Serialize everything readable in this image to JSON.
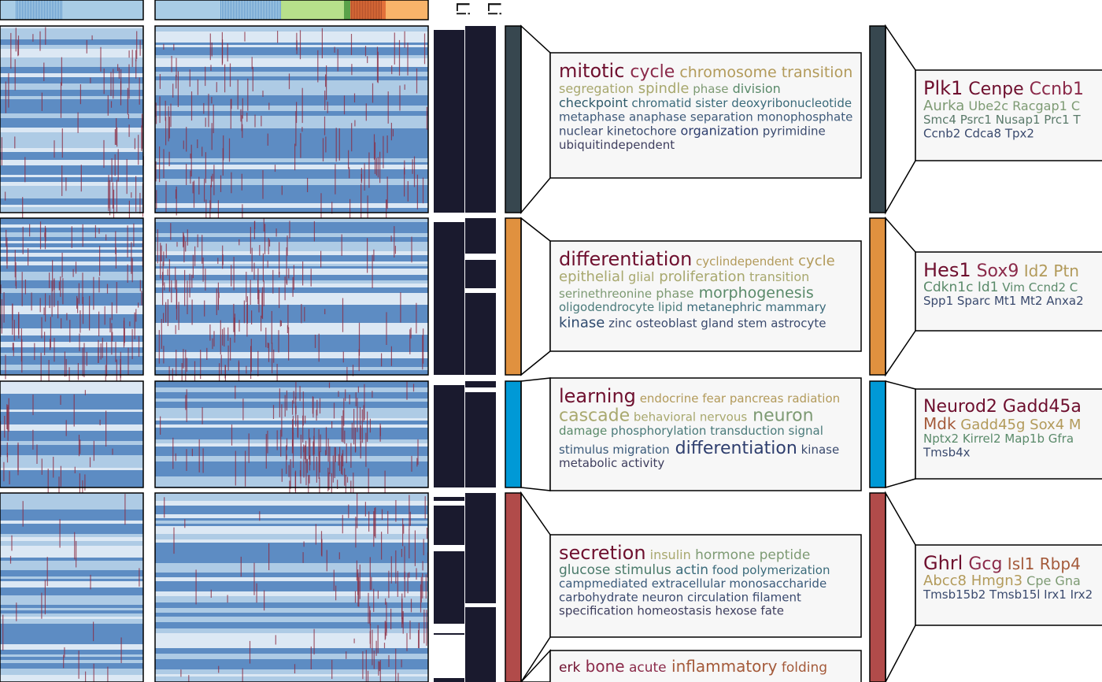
{
  "annotation_labels": [
    "Li",
    "Li"
  ],
  "colors": {
    "cluster_mitotic": "#37474f",
    "cluster_differentiation": "#e0913f",
    "cluster_learning": "#0099d6",
    "cluster_secretion": "#b14b4a",
    "heat_high": "#8b2a3f",
    "heat_low": "#4a7ebb",
    "heat_mid": "#c9dded",
    "bar_dark": "#1a1a2e"
  },
  "clusters": [
    {
      "name": "mitotic",
      "go_words": [
        [
          {
            "t": "mitotic",
            "c": "#6e0f2e",
            "s": 24
          },
          {
            "t": "cycle",
            "c": "#8b2a4a",
            "s": 22
          },
          {
            "t": "chromosome",
            "c": "#b29a5a",
            "s": 19
          },
          {
            "t": "transition",
            "c": "#b29a5a",
            "s": 19
          }
        ],
        [
          {
            "t": "segregation",
            "c": "#a8a86e",
            "s": 16
          },
          {
            "t": "spindle",
            "c": "#a8a86e",
            "s": 18
          },
          {
            "t": "phase",
            "c": "#7d9a73",
            "s": 15
          },
          {
            "t": "division",
            "c": "#5a8a6a",
            "s": 16
          }
        ],
        [
          {
            "t": "checkpoint",
            "c": "#2e5a6a",
            "s": 16
          },
          {
            "t": "chromatid",
            "c": "#3a6a7a",
            "s": 15
          },
          {
            "t": "sister",
            "c": "#3a6a7a",
            "s": 15
          },
          {
            "t": "deoxyribonucleotide",
            "c": "#3a6a7a",
            "s": 15
          }
        ],
        [
          {
            "t": "metaphase",
            "c": "#3e5a7a",
            "s": 15
          },
          {
            "t": "anaphase",
            "c": "#3e5a7a",
            "s": 15
          },
          {
            "t": "separation",
            "c": "#3e5a7a",
            "s": 15
          },
          {
            "t": "monophosphate",
            "c": "#3e5a7a",
            "s": 15
          }
        ],
        [
          {
            "t": "nuclear",
            "c": "#3a4a6e",
            "s": 15
          },
          {
            "t": "kinetochore",
            "c": "#3a4a6e",
            "s": 15
          },
          {
            "t": "organization",
            "c": "#2e3e6e",
            "s": 16
          },
          {
            "t": "pyrimidine",
            "c": "#3a4a6e",
            "s": 15
          }
        ],
        [
          {
            "t": "ubiquitindependent",
            "c": "#3e3e5e",
            "s": 15
          }
        ]
      ],
      "genes": [
        [
          {
            "t": "Plk1",
            "c": "#6e0f2e",
            "s": 24
          },
          {
            "t": "Cenpe",
            "c": "#6e0f2e",
            "s": 22
          },
          {
            "t": "Ccnb1",
            "c": "#8b2a4a",
            "s": 22
          }
        ],
        [
          {
            "t": "Aurka",
            "c": "#7d9a73",
            "s": 18
          },
          {
            "t": "Ube2c",
            "c": "#7d9a73",
            "s": 16
          },
          {
            "t": "Racgap1",
            "c": "#7d9a73",
            "s": 16
          },
          {
            "t": "C",
            "c": "#7d9a73",
            "s": 16
          }
        ],
        [
          {
            "t": "Smc4",
            "c": "#5a7a6a",
            "s": 15
          },
          {
            "t": "Psrc1",
            "c": "#5a7a6a",
            "s": 15
          },
          {
            "t": "Nusap1",
            "c": "#5a7a6a",
            "s": 15
          },
          {
            "t": "Prc1",
            "c": "#5a7a6a",
            "s": 15
          },
          {
            "t": "T",
            "c": "#5a7a6a",
            "s": 15
          }
        ],
        [
          {
            "t": "Ccnb2",
            "c": "#3a4a6e",
            "s": 15
          },
          {
            "t": "Cdca8",
            "c": "#3a4a6e",
            "s": 15
          },
          {
            "t": "Tpx2",
            "c": "#3a4a6e",
            "s": 15
          }
        ]
      ]
    },
    {
      "name": "differentiation",
      "go_words": [
        [
          {
            "t": "differentiation",
            "c": "#6e0f2e",
            "s": 24
          },
          {
            "t": "cyclindependent",
            "c": "#b29a5a",
            "s": 15
          },
          {
            "t": "cycle",
            "c": "#b29a5a",
            "s": 18
          }
        ],
        [
          {
            "t": "epithelial",
            "c": "#a8a86e",
            "s": 18
          },
          {
            "t": "glial",
            "c": "#a8a86e",
            "s": 16
          },
          {
            "t": "proliferation",
            "c": "#a8a86e",
            "s": 18
          },
          {
            "t": "transition",
            "c": "#a8a86e",
            "s": 16
          }
        ],
        [
          {
            "t": "serinethreonine",
            "c": "#7d9a73",
            "s": 15
          },
          {
            "t": "phase",
            "c": "#7d9a73",
            "s": 16
          },
          {
            "t": "morphogenesis",
            "c": "#5a8a6a",
            "s": 19
          }
        ],
        [
          {
            "t": "oligodendrocyte",
            "c": "#4a7a7a",
            "s": 15
          },
          {
            "t": "lipid",
            "c": "#4a7a7a",
            "s": 15
          },
          {
            "t": "metanephric",
            "c": "#3a6a7a",
            "s": 15
          },
          {
            "t": "mammary",
            "c": "#3a6a7a",
            "s": 15
          }
        ],
        [
          {
            "t": "kinase",
            "c": "#2e4a6e",
            "s": 18
          },
          {
            "t": "zinc",
            "c": "#3a4a6e",
            "s": 15
          },
          {
            "t": "osteoblast",
            "c": "#3a4a6e",
            "s": 15
          },
          {
            "t": "gland",
            "c": "#3a4a6e",
            "s": 15
          },
          {
            "t": "stem",
            "c": "#3a4a6e",
            "s": 15
          },
          {
            "t": "astrocyte",
            "c": "#3a4a6e",
            "s": 15
          }
        ]
      ],
      "genes": [
        [
          {
            "t": "Hes1",
            "c": "#6e0f2e",
            "s": 24
          },
          {
            "t": "Sox9",
            "c": "#8b2a4a",
            "s": 22
          },
          {
            "t": "Id2",
            "c": "#b29a5a",
            "s": 20
          },
          {
            "t": "Ptn",
            "c": "#b29a5a",
            "s": 20
          }
        ],
        [
          {
            "t": "Cdkn1c",
            "c": "#5a8a6a",
            "s": 17
          },
          {
            "t": "Id1",
            "c": "#5a8a6a",
            "s": 17
          },
          {
            "t": "Vim",
            "c": "#5a8a6a",
            "s": 15
          },
          {
            "t": "Ccnd2",
            "c": "#5a8a6a",
            "s": 15
          },
          {
            "t": "C",
            "c": "#5a8a6a",
            "s": 15
          }
        ],
        [
          {
            "t": "Spp1",
            "c": "#3a4a6e",
            "s": 15
          },
          {
            "t": "Sparc",
            "c": "#3a4a6e",
            "s": 15
          },
          {
            "t": "Mt1",
            "c": "#3a4a6e",
            "s": 15
          },
          {
            "t": "Mt2",
            "c": "#3a4a6e",
            "s": 15
          },
          {
            "t": "Anxa2",
            "c": "#3a4a6e",
            "s": 15
          }
        ]
      ]
    },
    {
      "name": "learning",
      "go_words": [
        [
          {
            "t": "learning",
            "c": "#6e0f2e",
            "s": 24
          },
          {
            "t": "endocrine",
            "c": "#b29a5a",
            "s": 15
          },
          {
            "t": "fear",
            "c": "#b29a5a",
            "s": 15
          },
          {
            "t": "pancreas",
            "c": "#b29a5a",
            "s": 15
          },
          {
            "t": "radiation",
            "c": "#b29a5a",
            "s": 15
          }
        ],
        [
          {
            "t": "cascade",
            "c": "#a8a86e",
            "s": 22
          },
          {
            "t": "behavioral",
            "c": "#a8a86e",
            "s": 15
          },
          {
            "t": "nervous",
            "c": "#a8a86e",
            "s": 15
          },
          {
            "t": "neuron",
            "c": "#7d9a73",
            "s": 22
          }
        ],
        [
          {
            "t": "damage",
            "c": "#5a8a6a",
            "s": 15
          },
          {
            "t": "phosphorylation",
            "c": "#4a7a7a",
            "s": 15
          },
          {
            "t": "transduction",
            "c": "#4a7a7a",
            "s": 15
          },
          {
            "t": "signal",
            "c": "#4a7a7a",
            "s": 15
          }
        ],
        [
          {
            "t": "stimulus",
            "c": "#3a5a7a",
            "s": 15
          },
          {
            "t": "migration",
            "c": "#3a5a7a",
            "s": 15
          },
          {
            "t": "differentiation",
            "c": "#2e3e6e",
            "s": 22
          },
          {
            "t": "kinase",
            "c": "#3a4a6e",
            "s": 15
          }
        ],
        [
          {
            "t": "metabolic",
            "c": "#3e3e5e",
            "s": 15
          },
          {
            "t": "activity",
            "c": "#3e3e5e",
            "s": 15
          }
        ]
      ],
      "genes": [
        [
          {
            "t": "Neurod2",
            "c": "#6e0f2e",
            "s": 22
          },
          {
            "t": "Gadd45a",
            "c": "#6e0f2e",
            "s": 22
          }
        ],
        [
          {
            "t": "Mdk",
            "c": "#a45a3a",
            "s": 20
          },
          {
            "t": "Gadd45g",
            "c": "#b29a5a",
            "s": 18
          },
          {
            "t": "Sox4",
            "c": "#b29a5a",
            "s": 18
          },
          {
            "t": "M",
            "c": "#b29a5a",
            "s": 18
          }
        ],
        [
          {
            "t": "Nptx2",
            "c": "#5a8a6a",
            "s": 15
          },
          {
            "t": "Kirrel2",
            "c": "#5a8a6a",
            "s": 15
          },
          {
            "t": "Map1b",
            "c": "#5a8a6a",
            "s": 15
          },
          {
            "t": "Gfra",
            "c": "#5a8a6a",
            "s": 15
          }
        ],
        [
          {
            "t": "Tmsb4x",
            "c": "#3a4a6e",
            "s": 15
          }
        ]
      ]
    },
    {
      "name": "secretion",
      "go_words": [
        [
          {
            "t": "secretion",
            "c": "#6e0f2e",
            "s": 24
          },
          {
            "t": "insulin",
            "c": "#a8a86e",
            "s": 16
          },
          {
            "t": "hormone",
            "c": "#7d9a73",
            "s": 17
          },
          {
            "t": "peptide",
            "c": "#7d9a73",
            "s": 17
          }
        ],
        [
          {
            "t": "glucose",
            "c": "#4a7a6a",
            "s": 17
          },
          {
            "t": "stimulus",
            "c": "#4a7a6a",
            "s": 17
          },
          {
            "t": "actin",
            "c": "#3a6a7a",
            "s": 17
          },
          {
            "t": "food",
            "c": "#3a6a7a",
            "s": 15
          },
          {
            "t": "polymerization",
            "c": "#3a6a7a",
            "s": 15
          }
        ],
        [
          {
            "t": "campmediated",
            "c": "#3a5a7a",
            "s": 15
          },
          {
            "t": "extracellular",
            "c": "#3a5a7a",
            "s": 15
          },
          {
            "t": "monosaccharide",
            "c": "#3a5a7a",
            "s": 15
          }
        ],
        [
          {
            "t": "carbohydrate",
            "c": "#3a4a6e",
            "s": 15
          },
          {
            "t": "neuron",
            "c": "#3a4a6e",
            "s": 15
          },
          {
            "t": "circulation",
            "c": "#3a4a6e",
            "s": 15
          },
          {
            "t": "filament",
            "c": "#3a4a6e",
            "s": 15
          }
        ],
        [
          {
            "t": "specification",
            "c": "#3e3e5e",
            "s": 15
          },
          {
            "t": "homeostasis",
            "c": "#3e3e5e",
            "s": 15
          },
          {
            "t": "hexose",
            "c": "#3e3e5e",
            "s": 15
          },
          {
            "t": "fate",
            "c": "#3e3e5e",
            "s": 15
          }
        ]
      ],
      "genes": [
        [
          {
            "t": "Ghrl",
            "c": "#6e0f2e",
            "s": 24
          },
          {
            "t": "Gcg",
            "c": "#8b2a4a",
            "s": 22
          },
          {
            "t": "Isl1",
            "c": "#a45a3a",
            "s": 20
          },
          {
            "t": "Rbp4",
            "c": "#a45a3a",
            "s": 20
          }
        ],
        [
          {
            "t": "Abcc8",
            "c": "#b29a5a",
            "s": 18
          },
          {
            "t": "Hmgn3",
            "c": "#b29a5a",
            "s": 18
          },
          {
            "t": "Cpe",
            "c": "#7d9a73",
            "s": 16
          },
          {
            "t": "Gna",
            "c": "#7d9a73",
            "s": 16
          }
        ],
        [
          {
            "t": "Tmsb15b2",
            "c": "#3a4a6e",
            "s": 15
          },
          {
            "t": "Tmsb15l",
            "c": "#3a4a6e",
            "s": 15
          },
          {
            "t": "Irx1",
            "c": "#3a4a6e",
            "s": 15
          },
          {
            "t": "Irx2",
            "c": "#3a4a6e",
            "s": 15
          }
        ]
      ]
    }
  ],
  "extra_go_words": [
    [
      {
        "t": "erk",
        "c": "#6e0f2e",
        "s": 17
      },
      {
        "t": "bone",
        "c": "#8b2a4a",
        "s": 20
      },
      {
        "t": "acute",
        "c": "#8b2a4a",
        "s": 17
      },
      {
        "t": "inflammatory",
        "c": "#a45a3a",
        "s": 20
      },
      {
        "t": "folding",
        "c": "#a45a3a",
        "s": 17
      }
    ]
  ]
}
